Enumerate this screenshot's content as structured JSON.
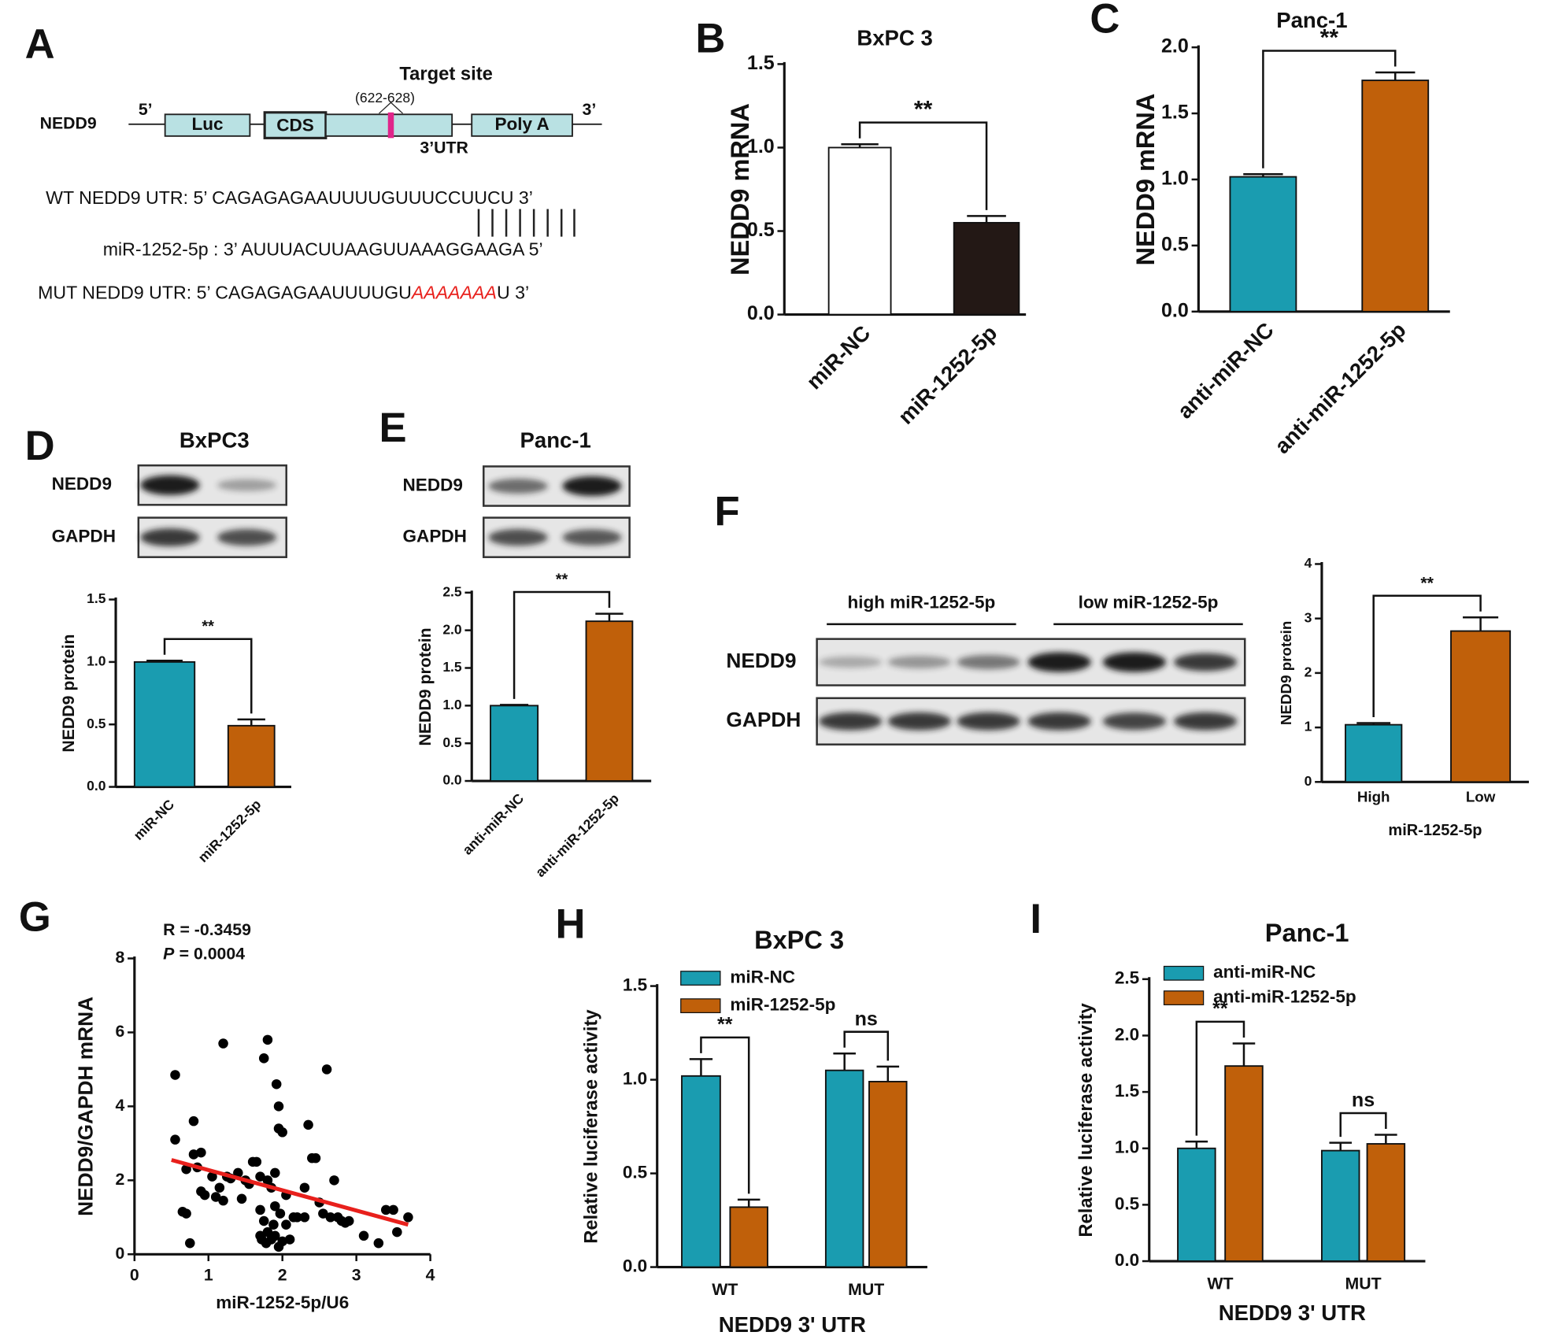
{
  "panel_labels": [
    "A",
    "B",
    "C",
    "D",
    "E",
    "F",
    "G",
    "H",
    "I"
  ],
  "diagram": {
    "gene": "NEDD9",
    "five_prime": "5’",
    "three_prime": "3’",
    "luc": "Luc",
    "cds": "CDS",
    "target_site": "Target site",
    "target_range": "(622-628)",
    "poly_a": "Poly A",
    "utr": "3’UTR",
    "wt": "WT NEDD9  UTR: 5’ CAGAGAGAAUUUUGUUUCCUUCU 3’",
    "mirna": "miR-1252-5p : 3’ AUUUACUUAAGUUAAAGGAAGA 5’",
    "mut_start": "MUT NEDD9  UTR: 5’ CAGAGAGAAUUUUGU",
    "mut_site": "AAAAAAA",
    "mut_end": "U 3’"
  },
  "blots": {
    "D": {
      "title": "BxPC3",
      "rows": [
        "NEDD9",
        "GAPDH"
      ]
    },
    "E": {
      "title": "Panc-1",
      "rows": [
        "NEDD9",
        "GAPDH"
      ]
    },
    "F": {
      "groups": [
        "high miR-1252-5p",
        "low miR-1252-5p"
      ],
      "rows": [
        "NEDD9",
        "GAPDH"
      ]
    }
  },
  "chart_data": [
    {
      "type": "bar",
      "title": "BxPC 3",
      "ylabel": "NEDD9 mRNA",
      "categories": [
        "miR-NC",
        "miR-1252-5p"
      ],
      "values": [
        1.0,
        0.55
      ],
      "errors": [
        0.02,
        0.04
      ],
      "colors": [
        "#ffffff",
        "#231815"
      ],
      "ylim": [
        0,
        1.5
      ],
      "yticks": [
        {
          "value": 0,
          "label": "0.0"
        },
        0.5,
        {
          "value": 1,
          "label": "1.0"
        },
        1.5
      ],
      "significance": "**"
    },
    {
      "type": "bar",
      "title": "Panc-1",
      "ylabel": "NEDD9 mRNA",
      "categories": [
        "anti-miR-NC",
        "anti-miR-1252-5p"
      ],
      "values": [
        1.02,
        1.75
      ],
      "errors": [
        0.02,
        0.06
      ],
      "colors": [
        "#1a9cb0",
        "#c0600a"
      ],
      "ylim": [
        0,
        2
      ],
      "yticks": [
        {
          "value": 0,
          "label": "0.0"
        },
        0.5,
        {
          "value": 1,
          "label": "1.0"
        },
        1.5,
        {
          "value": 2,
          "label": "2.0"
        }
      ],
      "significance": "**"
    },
    {
      "type": "bar",
      "ylabel": "NEDD9 protein",
      "categories": [
        "miR-NC",
        "miR-1252-5p"
      ],
      "values": [
        1.0,
        0.49
      ],
      "errors": [
        0.01,
        0.05
      ],
      "colors": [
        "#1a9cb0",
        "#c0600a"
      ],
      "ylim": [
        0,
        1.5
      ],
      "yticks": [
        {
          "value": 0,
          "label": "0.0"
        },
        0.5,
        {
          "value": 1,
          "label": "1.0"
        },
        1.5
      ],
      "significance": "**"
    },
    {
      "type": "bar",
      "ylabel": "NEDD9 protein",
      "categories": [
        "anti-miR-NC",
        "anti-miR-1252-5p"
      ],
      "values": [
        1.0,
        2.12
      ],
      "errors": [
        0.01,
        0.1
      ],
      "colors": [
        "#1a9cb0",
        "#c0600a"
      ],
      "ylim": [
        0,
        2.5
      ],
      "yticks": [
        {
          "value": 0,
          "label": "0.0"
        },
        0.5,
        {
          "value": 1,
          "label": "1.0"
        },
        1.5,
        {
          "value": 2,
          "label": "2.0"
        },
        2.5
      ],
      "significance": "**"
    },
    {
      "type": "bar",
      "ylabel": "NEDD9 protein",
      "xlabel": "miR-1252-5p",
      "categories": [
        "High",
        "Low"
      ],
      "values": [
        1.05,
        2.77
      ],
      "errors": [
        0.03,
        0.25
      ],
      "colors": [
        "#1a9cb0",
        "#c0600a"
      ],
      "ylim": [
        0,
        4
      ],
      "yticks": [
        0,
        1,
        2,
        3,
        4
      ],
      "significance": "**"
    },
    {
      "type": "scatter",
      "xlabel": "miR-1252-5p/U6",
      "ylabel": "NEDD9/GAPDH mRNA",
      "annotation": "R = -0.3459",
      "stat_symbol": "P",
      "stat_value": "= 0.0004",
      "xlim": [
        0,
        4
      ],
      "ylim": [
        0,
        8
      ],
      "xticks": [
        0,
        1,
        2,
        3,
        4
      ],
      "yticks": [
        0,
        2,
        4,
        6,
        8
      ],
      "color": "#000000",
      "x": [
        0.55,
        0.55,
        0.65,
        0.7,
        0.7,
        0.75,
        0.8,
        0.8,
        0.85,
        0.9,
        0.9,
        0.95,
        1.05,
        1.1,
        1.15,
        1.2,
        1.2,
        1.25,
        1.3,
        1.4,
        1.45,
        1.5,
        1.55,
        1.6,
        1.65,
        1.7,
        1.7,
        1.7,
        1.72,
        1.75,
        1.75,
        1.78,
        1.8,
        1.8,
        1.8,
        1.85,
        1.85,
        1.88,
        1.9,
        1.9,
        1.9,
        1.92,
        1.95,
        1.95,
        1.95,
        1.97,
        2.0,
        2.0,
        2.05,
        2.05,
        2.1,
        2.15,
        2.2,
        2.3,
        2.3,
        2.35,
        2.4,
        2.45,
        2.5,
        2.55,
        2.6,
        2.65,
        2.7,
        2.75,
        2.8,
        2.85,
        2.9,
        3.1,
        3.3,
        3.4,
        3.5,
        3.55,
        3.7
      ],
      "y": [
        4.85,
        3.1,
        1.15,
        1.1,
        2.3,
        0.3,
        2.7,
        3.6,
        2.35,
        2.75,
        1.7,
        1.6,
        2.1,
        1.55,
        1.8,
        1.45,
        5.7,
        2.1,
        2.05,
        2.2,
        1.5,
        2.0,
        1.9,
        2.5,
        2.5,
        2.1,
        0.5,
        1.2,
        0.4,
        5.3,
        0.9,
        0.3,
        5.8,
        2.0,
        0.6,
        1.8,
        0.4,
        0.8,
        2.2,
        0.5,
        1.3,
        4.6,
        3.4,
        4.0,
        0.2,
        1.1,
        3.3,
        0.35,
        0.8,
        1.6,
        0.4,
        1.0,
        1.0,
        1.0,
        1.8,
        3.5,
        2.6,
        2.6,
        1.4,
        1.1,
        5.0,
        1.0,
        2.0,
        1.0,
        0.9,
        0.85,
        0.9,
        0.5,
        0.3,
        1.2,
        1.2,
        0.6,
        1.0
      ],
      "fit_line": {
        "x": [
          0.5,
          3.7
        ],
        "y": [
          2.55,
          0.8
        ],
        "color": "#e8201c"
      }
    },
    {
      "type": "grouped_bar",
      "title": "BxPC 3",
      "ylabel": "Relative luciferase activity",
      "xlabel": "NEDD9 3' UTR",
      "categories": [
        "WT",
        "MUT"
      ],
      "series": [
        {
          "name": "miR-NC",
          "color": "#1a9cb0",
          "values": [
            1.02,
            1.05
          ],
          "errors": [
            0.09,
            0.09
          ]
        },
        {
          "name": "miR-1252-5p",
          "color": "#c0600a",
          "values": [
            0.32,
            0.99
          ],
          "errors": [
            0.04,
            0.08
          ]
        }
      ],
      "ylim": [
        0,
        1.5
      ],
      "yticks": [
        {
          "value": 0,
          "label": "0.0"
        },
        0.5,
        {
          "value": 1,
          "label": "1.0"
        },
        1.5
      ],
      "significance": [
        "**",
        "ns"
      ]
    },
    {
      "type": "grouped_bar",
      "title": "Panc-1",
      "ylabel": "Relative luciferase activity",
      "xlabel": "NEDD9 3' UTR",
      "categories": [
        "WT",
        "MUT"
      ],
      "series": [
        {
          "name": "anti-miR-NC",
          "color": "#1a9cb0",
          "values": [
            1.0,
            0.98
          ],
          "errors": [
            0.06,
            0.07
          ]
        },
        {
          "name": "anti-miR-1252-5p",
          "color": "#c0600a",
          "values": [
            1.73,
            1.04
          ],
          "errors": [
            0.2,
            0.08
          ]
        }
      ],
      "ylim": [
        0,
        2.5
      ],
      "yticks": [
        {
          "value": 0,
          "label": "0.0"
        },
        0.5,
        {
          "value": 1,
          "label": "1.0"
        },
        1.5,
        {
          "value": 2,
          "label": "2.0"
        },
        2.5
      ],
      "significance": [
        "**",
        "ns"
      ]
    }
  ]
}
